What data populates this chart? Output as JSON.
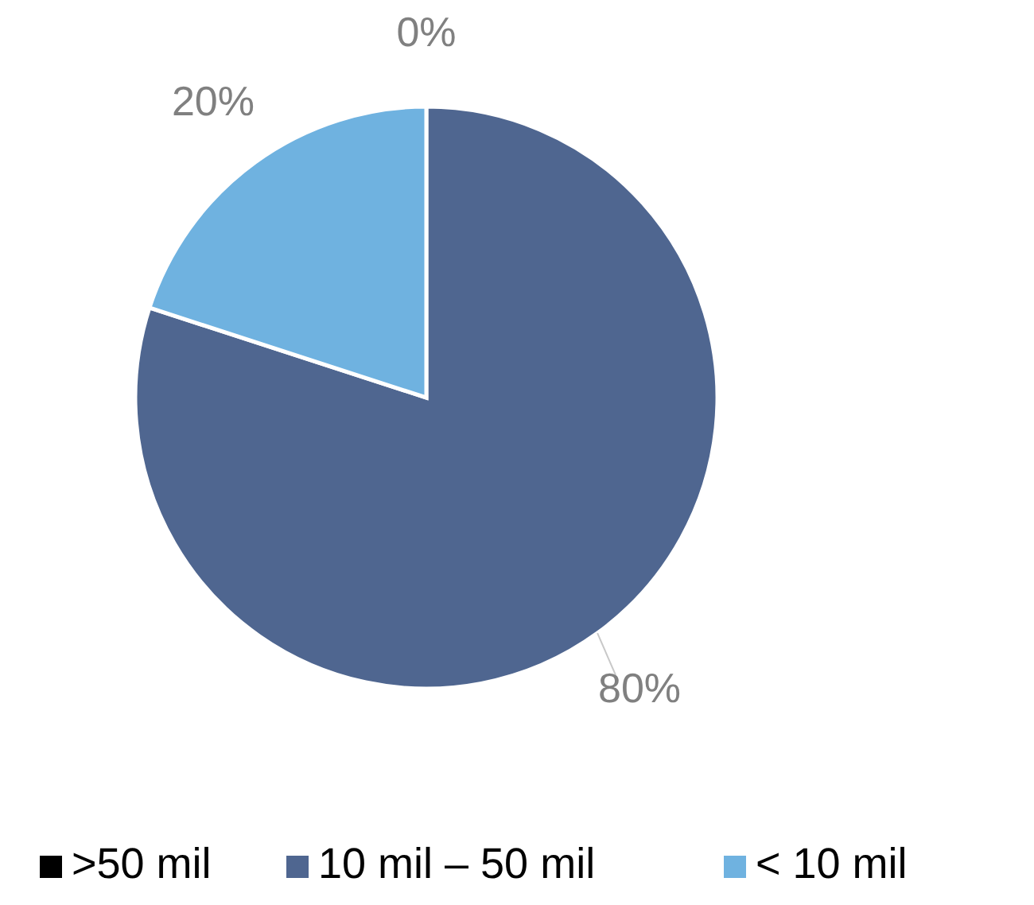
{
  "chart_data": {
    "type": "pie",
    "categories": [
      ">50 mil",
      "10 mil – 50 mil",
      "< 10 mil"
    ],
    "values": [
      0,
      80,
      20
    ],
    "colors": [
      "#000000",
      "#4f6690",
      "#6fb2e0"
    ],
    "value_labels": [
      "0%",
      "80%",
      "20%"
    ],
    "legend": "bottom"
  }
}
